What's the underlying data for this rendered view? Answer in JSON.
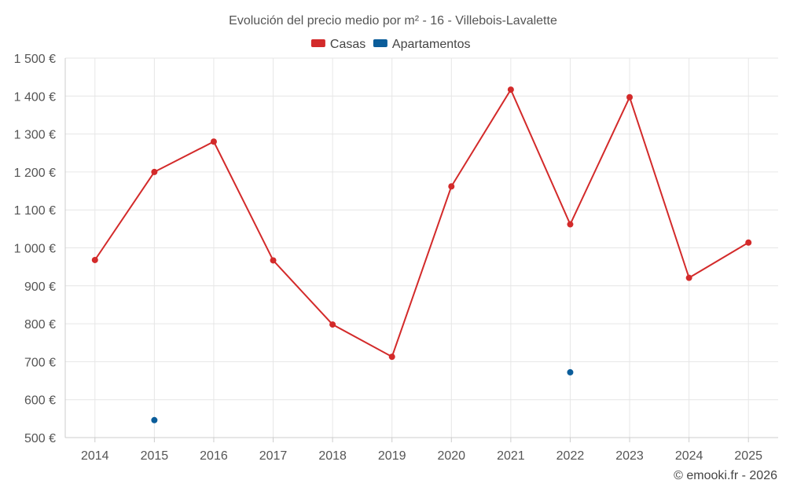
{
  "chart_data": {
    "type": "line",
    "title": "Evolución del precio medio por m² - 16 - Villebois-Lavalette",
    "categories": [
      "2014",
      "2015",
      "2016",
      "2017",
      "2018",
      "2019",
      "2020",
      "2021",
      "2022",
      "2023",
      "2024",
      "2025"
    ],
    "series": [
      {
        "name": "Casas",
        "color": "#d32a2a",
        "values": [
          968,
          1200,
          1280,
          967,
          798,
          713,
          1162,
          1417,
          1062,
          1397,
          921,
          1014
        ]
      },
      {
        "name": "Apartamentos",
        "color": "#0b5d9a",
        "values": [
          null,
          546,
          null,
          null,
          null,
          null,
          null,
          null,
          672,
          null,
          null,
          null
        ]
      }
    ],
    "ylim": [
      500,
      1500
    ],
    "yticks": [
      500,
      600,
      700,
      800,
      900,
      1000,
      1100,
      1200,
      1300,
      1400,
      1500
    ],
    "ytick_labels": [
      "500 €",
      "600 €",
      "700 €",
      "800 €",
      "900 €",
      "1 000 €",
      "1 100 €",
      "1 200 €",
      "1 300 €",
      "1 400 €",
      "1 500 €"
    ],
    "xlabel": "",
    "ylabel": "",
    "grid": true,
    "legend": "top-center"
  },
  "credit": "© emooki.fr - 2026"
}
